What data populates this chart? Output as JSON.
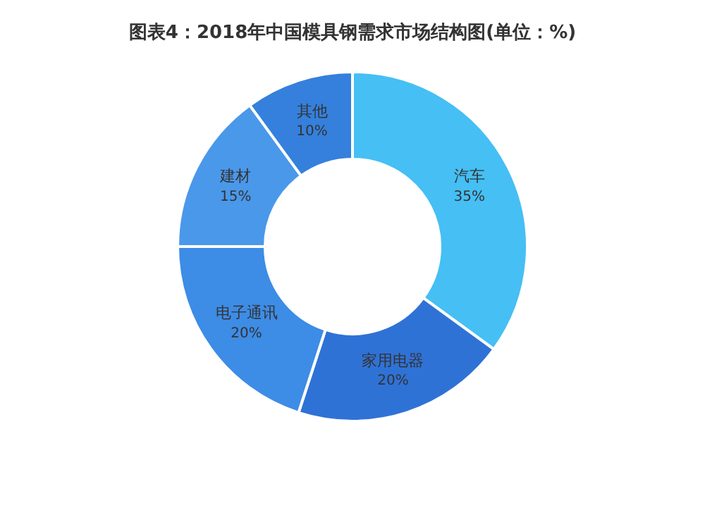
{
  "chart_data": {
    "type": "donut",
    "title": "图表4：2018年中国模具钢需求市场结构图(单位：%)",
    "categories": [
      "汽车",
      "家用电器",
      "电子通讯",
      "建材",
      "其他"
    ],
    "values": [
      35,
      20,
      20,
      15,
      10
    ],
    "value_labels": [
      "35%",
      "20%",
      "20%",
      "15%",
      "10%"
    ],
    "colors": [
      "#45bff4",
      "#2f72d6",
      "#3d8ce6",
      "#4a98ea",
      "#3580dc"
    ],
    "legend": false
  }
}
